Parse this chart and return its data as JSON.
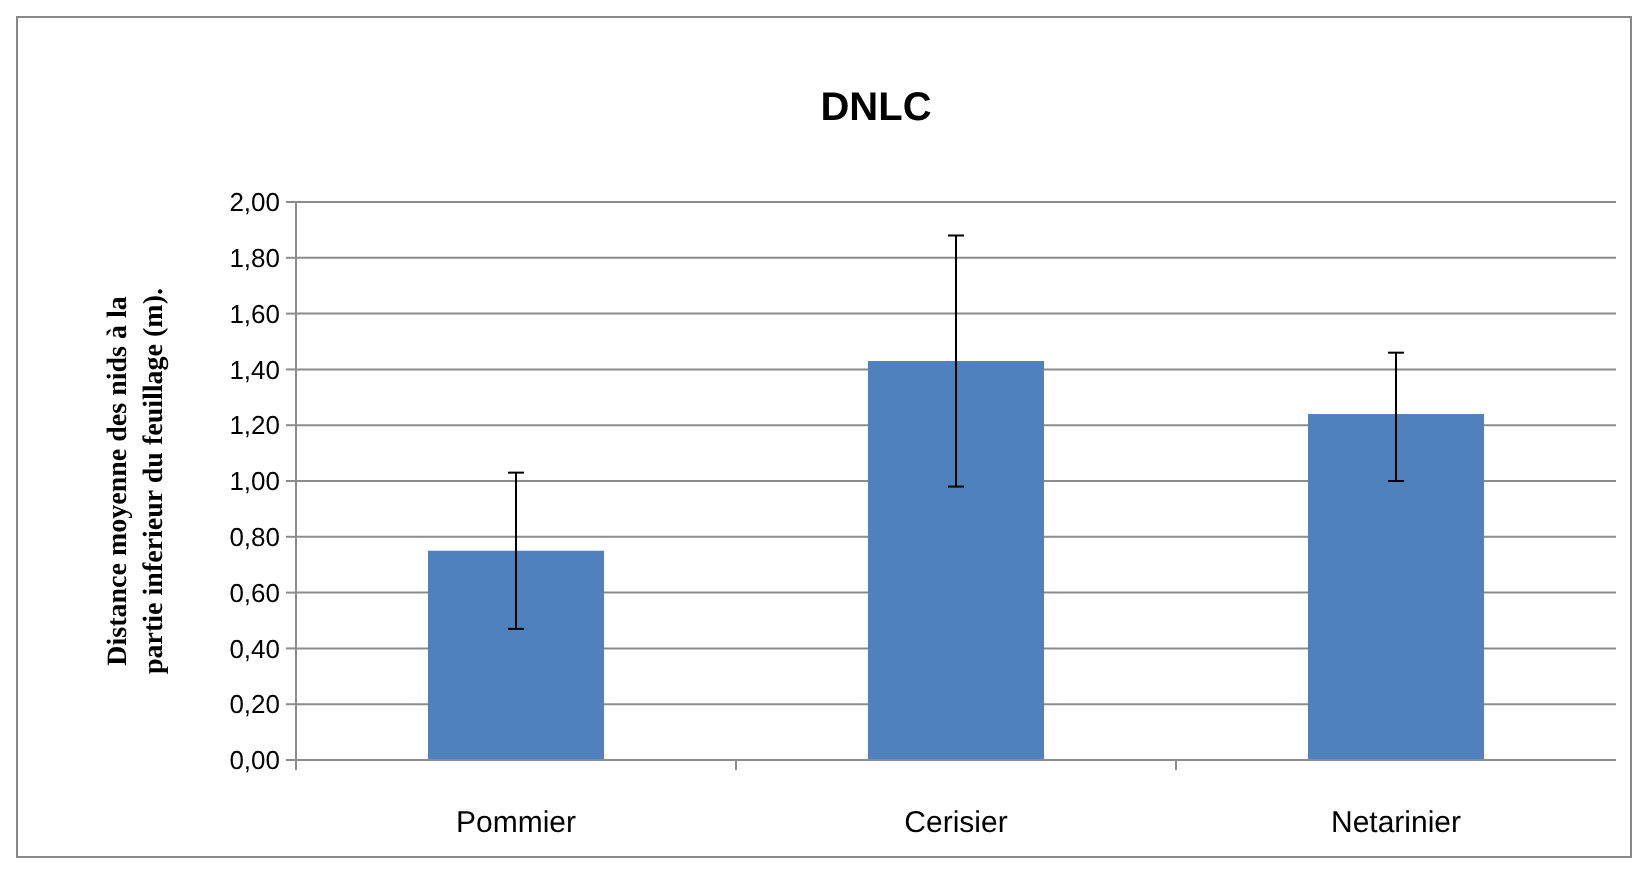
{
  "chart_data": {
    "type": "bar",
    "title": "DNLC",
    "ylabel": "Distance moyenne des nids à la partie inferieur du feuillage (m).",
    "categories": [
      "Pommier",
      "Cerisier",
      "Netarinier"
    ],
    "values": [
      0.75,
      1.43,
      1.24
    ],
    "errors": [
      [
        0.47,
        1.03
      ],
      [
        0.98,
        1.88
      ],
      [
        1.0,
        1.46
      ]
    ],
    "color": "#4f81bd",
    "ylim": [
      0,
      2
    ],
    "yticks": [
      {
        "value": 0,
        "label": "0,00"
      },
      {
        "value": 0.2,
        "label": "0,20"
      },
      {
        "value": 0.4,
        "label": "0,40"
      },
      {
        "value": 0.6,
        "label": "0,60"
      },
      {
        "value": 0.8,
        "label": "0,80"
      },
      {
        "value": 1,
        "label": "1,00"
      },
      {
        "value": 1.2,
        "label": "1,20"
      },
      {
        "value": 1.4,
        "label": "1,40"
      },
      {
        "value": 1.6,
        "label": "1,60"
      },
      {
        "value": 1.8,
        "label": "1,80"
      },
      {
        "value": 2,
        "label": "2,00"
      }
    ],
    "grid": "y"
  }
}
